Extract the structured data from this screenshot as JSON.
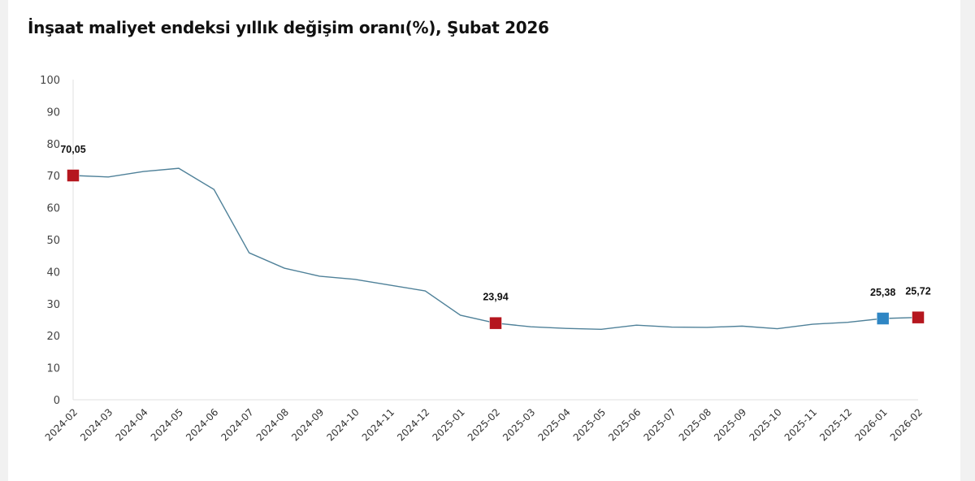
{
  "chart_data": {
    "type": "line",
    "title": "İnşaat maliyet endeksi yıllık değişim oranı(%), Şubat 2026",
    "xlabel": "",
    "ylabel": "",
    "ylim": [
      0,
      100
    ],
    "yticks": [
      0,
      10,
      20,
      30,
      40,
      50,
      60,
      70,
      80,
      90,
      100
    ],
    "grid": false,
    "categories": [
      "2024-02",
      "2024-03",
      "2024-04",
      "2024-05",
      "2024-06",
      "2024-07",
      "2024-08",
      "2024-09",
      "2024-10",
      "2024-11",
      "2024-12",
      "2025-01",
      "2025-02",
      "2025-03",
      "2025-04",
      "2025-05",
      "2025-06",
      "2025-07",
      "2025-08",
      "2025-09",
      "2025-10",
      "2025-11",
      "2025-12",
      "2026-01",
      "2026-02"
    ],
    "values": [
      70.05,
      69.6,
      71.3,
      72.3,
      65.7,
      45.9,
      41.1,
      38.6,
      37.6,
      35.8,
      34.0,
      26.4,
      23.94,
      22.8,
      22.3,
      22.0,
      23.3,
      22.7,
      22.6,
      23.0,
      22.2,
      23.6,
      24.2,
      25.38,
      25.72
    ],
    "line_color": "#4f8199",
    "highlighted_points": [
      {
        "category": "2024-02",
        "label": "70,05",
        "color": "#b5161e"
      },
      {
        "category": "2025-02",
        "label": "23,94",
        "color": "#b5161e"
      },
      {
        "category": "2026-01",
        "label": "25,38",
        "color": "#2f86c4"
      },
      {
        "category": "2026-02",
        "label": "25,72",
        "color": "#b5161e"
      }
    ]
  }
}
